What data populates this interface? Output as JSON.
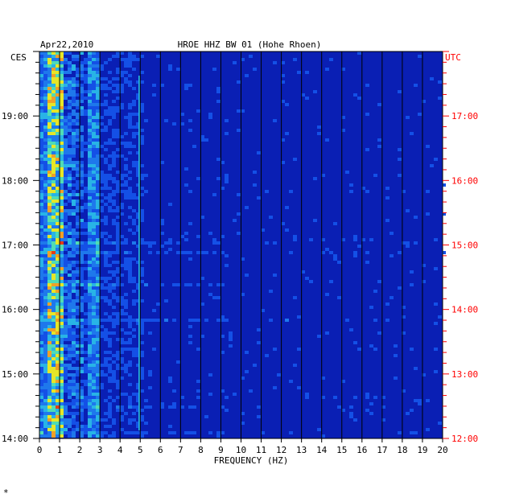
{
  "chart_data": {
    "type": "heatmap",
    "title": "HROE HHZ BW 01 (Hohe Rhoen)",
    "date": "Apr22,2010",
    "left_tz": "CES",
    "right_tz": "UTC",
    "xlabel": "FREQUENCY (HZ)",
    "xlim": [
      0,
      20
    ],
    "x_ticks": [
      "0",
      "1",
      "2",
      "3",
      "4",
      "5",
      "6",
      "7",
      "8",
      "9",
      "10",
      "11",
      "12",
      "13",
      "14",
      "15",
      "16",
      "17",
      "18",
      "19",
      "20"
    ],
    "left_time_ticks": [
      {
        "label": "19:00",
        "hours_ago": 5
      },
      {
        "label": "18:00",
        "hours_ago": 4
      },
      {
        "label": "17:00",
        "hours_ago": 3
      },
      {
        "label": "16:00",
        "hours_ago": 2
      },
      {
        "label": "15:00",
        "hours_ago": 1
      },
      {
        "label": "14:00",
        "hours_ago": 0
      }
    ],
    "right_time_ticks": [
      {
        "label": "17:00",
        "hours_ago": 5
      },
      {
        "label": "16:00",
        "hours_ago": 4
      },
      {
        "label": "15:00",
        "hours_ago": 3
      },
      {
        "label": "14:00",
        "hours_ago": 2
      },
      {
        "label": "13:00",
        "hours_ago": 1
      },
      {
        "label": "12:00",
        "hours_ago": 0
      }
    ],
    "time_span_hours": 6,
    "grid": true,
    "colors": {
      "background": "#0a1fb4",
      "low": "#0a2cd6",
      "mid": "#28b4e6",
      "high": "#e6e628",
      "peak": "#e63c14",
      "right_axis": "#ff0000",
      "grid": "#000000"
    },
    "features": {
      "strong_band_hz": [
        0.3,
        1.0
      ],
      "secondary_band_hz": [
        2.2,
        2.9
      ],
      "narrow_line_hz": 4.95
    }
  },
  "footer_mark": "*"
}
